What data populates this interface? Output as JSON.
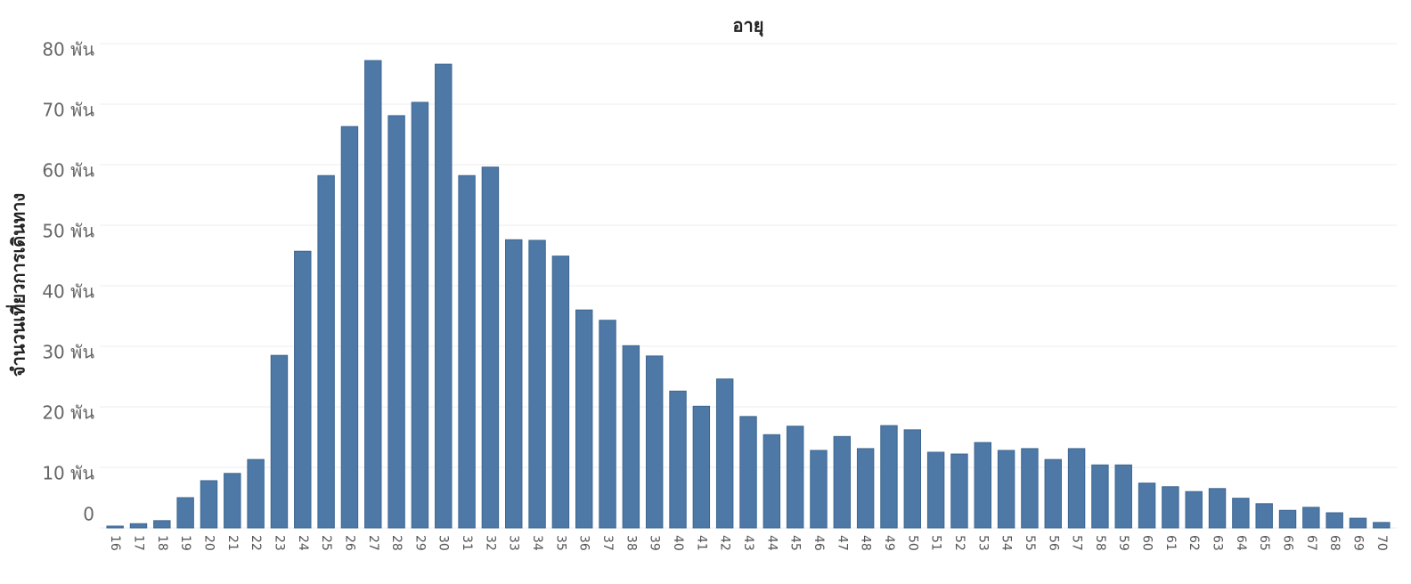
{
  "chart_data": {
    "type": "bar",
    "title": "อายุ",
    "y_label": "จำนวนเที่ยวการเดินทาง",
    "categories": [
      "16",
      "17",
      "18",
      "19",
      "20",
      "21",
      "22",
      "23",
      "24",
      "25",
      "26",
      "27",
      "28",
      "29",
      "30",
      "31",
      "32",
      "33",
      "34",
      "35",
      "36",
      "37",
      "38",
      "39",
      "40",
      "41",
      "42",
      "43",
      "44",
      "45",
      "46",
      "47",
      "48",
      "49",
      "50",
      "51",
      "52",
      "53",
      "54",
      "55",
      "56",
      "57",
      "58",
      "59",
      "60",
      "61",
      "62",
      "63",
      "64",
      "65",
      "66",
      "67",
      "68",
      "69",
      "70"
    ],
    "values": [
      300,
      700,
      1200,
      5000,
      7800,
      9000,
      11300,
      28500,
      45700,
      58200,
      66300,
      77200,
      68100,
      70300,
      76600,
      58200,
      59600,
      47600,
      47500,
      44900,
      36000,
      34300,
      30100,
      28400,
      22600,
      20100,
      24600,
      18400,
      15400,
      16800,
      12800,
      15100,
      13100,
      16900,
      16200,
      12500,
      12200,
      14100,
      12800,
      13100,
      11300,
      13100,
      10400,
      10400,
      7400,
      6800,
      6000,
      6500,
      4900,
      4000,
      2900,
      3400,
      2500,
      1600,
      900
    ],
    "color": "#4e79a7",
    "ylim": [
      0,
      80000
    ],
    "yticks": [
      0,
      {
        "value": 10000,
        "label": "10 พัน"
      },
      {
        "value": 20000,
        "label": "20 พัน"
      },
      {
        "value": 30000,
        "label": "30 พัน"
      },
      {
        "value": 40000,
        "label": "40 พัน"
      },
      {
        "value": 50000,
        "label": "50 พัน"
      },
      {
        "value": 60000,
        "label": "60 พัน"
      },
      {
        "value": 70000,
        "label": "70 พัน"
      },
      {
        "value": 80000,
        "label": "80 พัน"
      }
    ],
    "grid": true
  }
}
